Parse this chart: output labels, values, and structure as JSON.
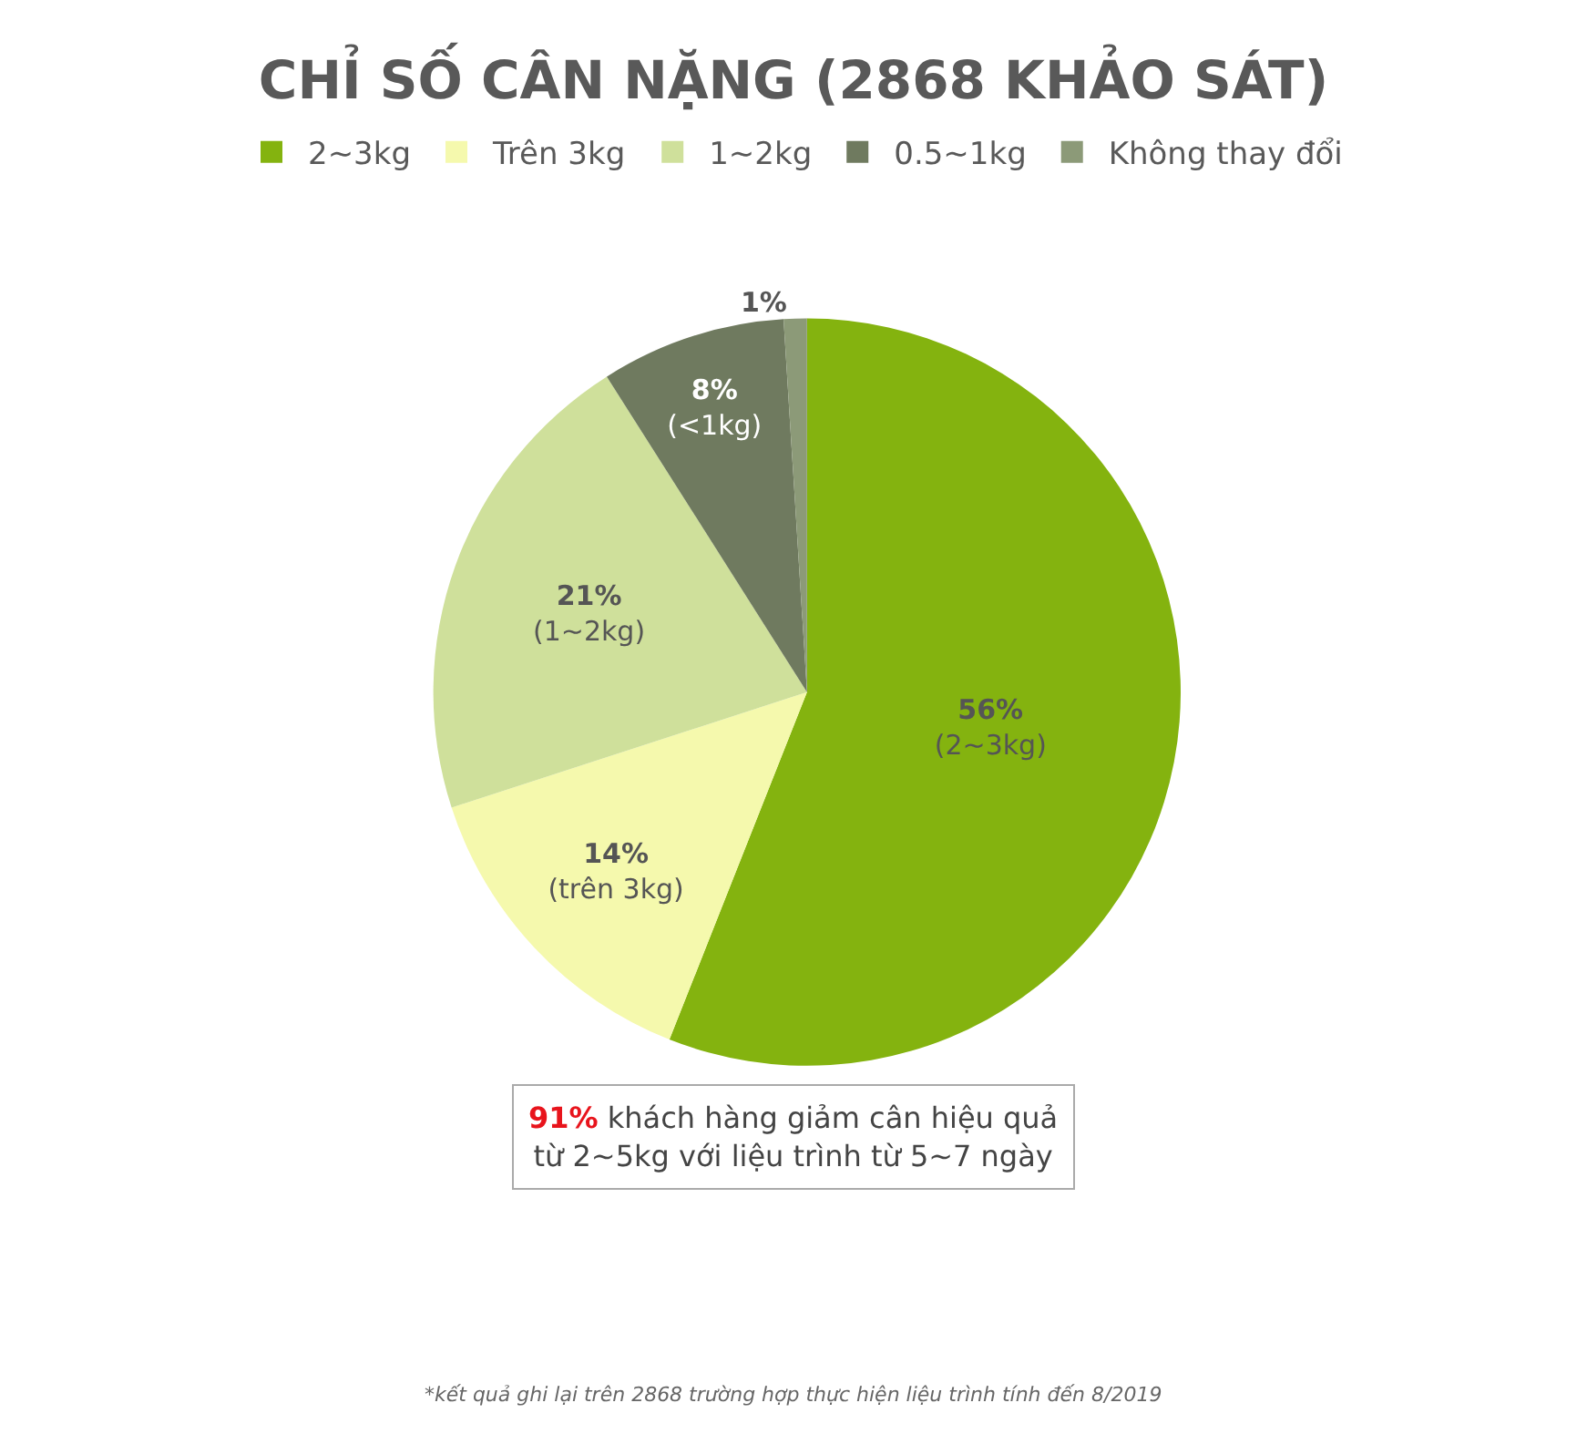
{
  "chart_data": {
    "type": "pie",
    "title": "CHỈ SỐ CÂN NẶNG (2868 KHẢO SÁT)",
    "categories": [
      "2~3kg",
      "Trên 3kg",
      "1~2kg",
      "0.5~1kg",
      "Không thay đổi"
    ],
    "values": [
      56,
      14,
      21,
      8,
      1
    ],
    "colors": [
      "#84b30f",
      "#f5f9ad",
      "#cfe09b",
      "#6f7a5f",
      "#8c9a78"
    ],
    "value_labels": [
      "56%\n(2~3kg)",
      "14%\n(trên 3kg)",
      "21%\n(1~2kg)",
      "8%\n(<1kg)",
      "1%"
    ],
    "legend": "top",
    "annotations": [
      "91% khách hàng giảm cân hiệu quả\ntừ 2~5kg với liệu trình từ 5~7 ngày",
      "*kết quả ghi lại trên 2868 trường hợp thực hiện liệu trình tính đến 8/2019"
    ]
  }
}
